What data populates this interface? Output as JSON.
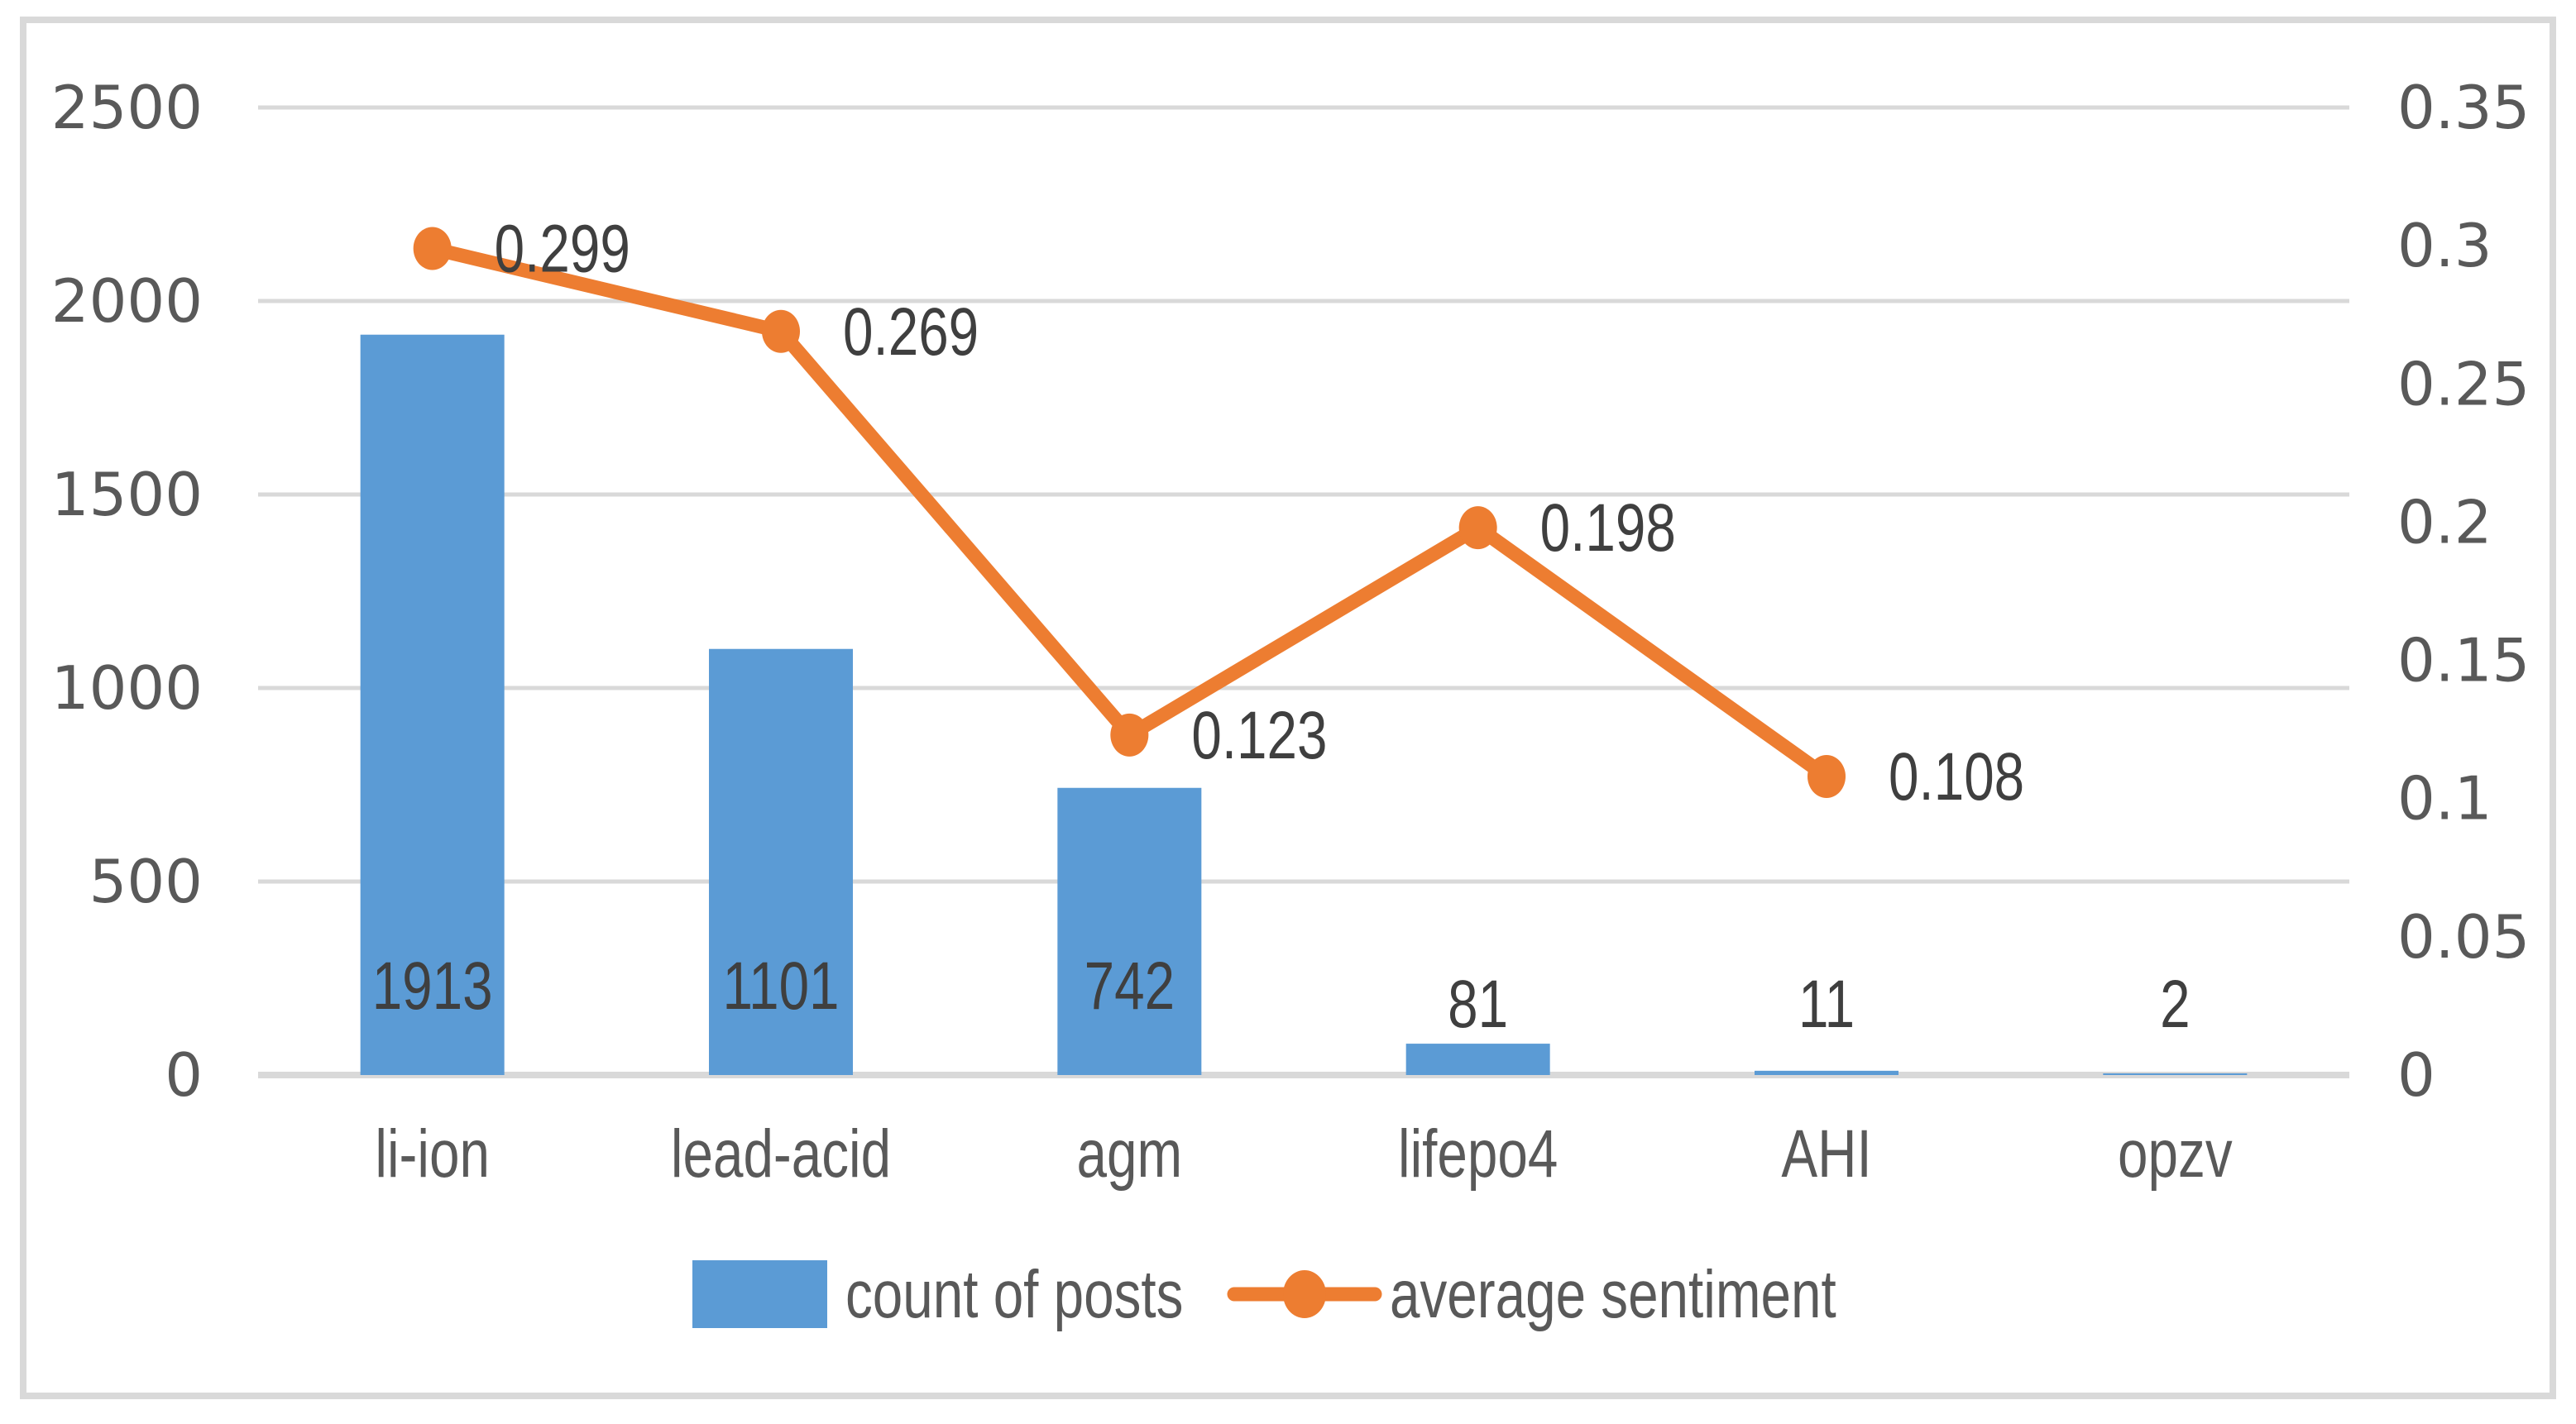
{
  "chart_data": {
    "type": "combo-bar-line",
    "title": "",
    "categories": [
      "li-ion",
      "lead-acid",
      "agm",
      "lifepo4",
      "AHI",
      "opzv"
    ],
    "series": [
      {
        "name": "count of posts",
        "type": "bar",
        "axis": "left",
        "color": "#5B9BD5",
        "values": [
          1913,
          1101,
          742,
          81,
          11,
          2
        ],
        "labels": [
          "1913",
          "1101",
          "742",
          "81",
          "11",
          "2"
        ]
      },
      {
        "name": "average sentiment",
        "type": "line",
        "axis": "right",
        "color": "#ED7D31",
        "values": [
          0.299,
          0.269,
          0.123,
          0.198,
          0.108,
          null
        ],
        "labels": [
          "0.299",
          "0.269",
          "0.123",
          "0.198",
          "0.108"
        ]
      }
    ],
    "left_axis": {
      "min": 0,
      "max": 2500,
      "step": 500,
      "ticks": [
        "2500",
        "2000",
        "1500",
        "1000",
        "500",
        "0"
      ]
    },
    "right_axis": {
      "min": 0,
      "max": 0.35,
      "step": 0.05,
      "ticks": [
        "0.35",
        "0.3",
        "0.25",
        "0.2",
        "0.15",
        "0.1",
        "0.05",
        "0"
      ]
    },
    "grid": true,
    "legend": {
      "position": "bottom",
      "entries": [
        "count of posts",
        "average sentiment"
      ]
    },
    "colors": {
      "bar": "#5B9BD5",
      "line": "#ED7D31",
      "gridline": "#D9D9D9",
      "axis_line": "#D9D9D9",
      "frame_border": "#D9D9D9",
      "tick_text": "#595959",
      "category_text": "#595959",
      "data_label_text": "#3F3F3F",
      "legend_text": "#595959",
      "background": "#FFFFFF"
    }
  }
}
